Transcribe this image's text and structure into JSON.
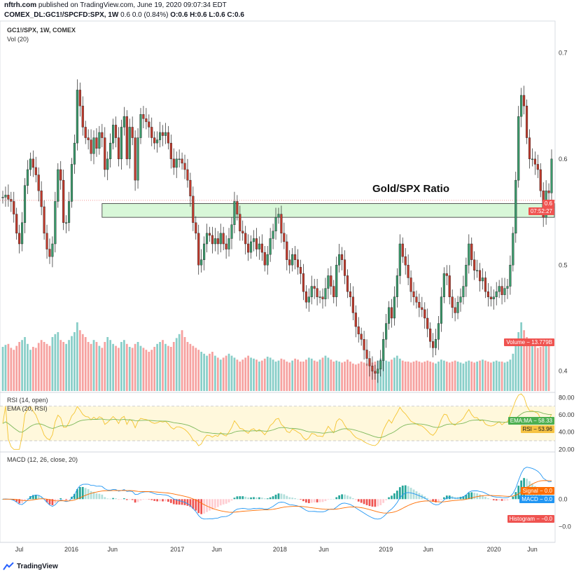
{
  "header": {
    "line1_site": "nftrh.com",
    "line1_rest": " published on TradingView.com, June 19, 2020 09:07:34 EDT",
    "line2_symbol": "COMEX_DL:GC1!/SPCFD:SPX, 1W",
    "line2_rest": " 0.6 0.0 (0.84%) ",
    "ohlc": "O:0.6 H:0.6 L:0.6 C:0.6"
  },
  "main_legend": {
    "symbol": "GC1!/SPX, 1W, COMEX",
    "vol": "Vol (20)"
  },
  "rsi_legend": {
    "rsi": "RSI (14, open)",
    "ema": "EMA (20, RSI)"
  },
  "macd_legend": "MACD (12, 26, close, 20)",
  "annotation": "Gold/SPX Ratio",
  "tags": {
    "price": "0.6",
    "countdown": "07:52:27",
    "volume": "Volume − 13.779B",
    "ema_ma": "EMA:MA − 58.33",
    "rsi": "RSI − 53.96",
    "signal": "Signal − 0.0",
    "macd": "MACD − 0.0",
    "histogram": "Histogram − −0.0"
  },
  "colors": {
    "up": "#26a69a",
    "down": "#ef5350",
    "candle_up": "#3a9a6b",
    "candle_down": "#c0392b",
    "rsi": "#f4c430",
    "ema": "#7cb85a",
    "macd": "#2196f3",
    "signal": "#ff6d00",
    "zone": "#d8f7d8",
    "ema_tag": "#4caf50",
    "rsi_tag": "#f6c343",
    "signal_tag": "#ff6d00",
    "macd_tag": "#2196f3",
    "hist_tag": "#ef5350",
    "volume_tag": "#ef5350"
  },
  "chart_data": {
    "type": "candlestick",
    "title": "GC1!/SPX, 1W, COMEX",
    "x_ticks": [
      "Jul",
      "2016",
      "Jun",
      "2017",
      "Jun",
      "2018",
      "Jun",
      "2019",
      "Jun",
      "2020",
      "Jun"
    ],
    "price_axis": {
      "ticks": [
        0.7,
        0.6,
        0.5,
        0.4
      ],
      "range": [
        0.38,
        0.73
      ]
    },
    "rsi_axis": {
      "ticks": [
        80.0,
        60.0,
        40.0,
        20.0
      ],
      "range": [
        17,
        86
      ],
      "bands": [
        70,
        30
      ]
    },
    "macd_axis": {
      "ticks": [
        0.0,
        -0.0
      ],
      "range": [
        -0.055,
        0.06
      ]
    },
    "close_series": [
      0.564,
      0.566,
      0.562,
      0.56,
      0.548,
      0.53,
      0.52,
      0.54,
      0.575,
      0.59,
      0.6,
      0.592,
      0.585,
      0.57,
      0.555,
      0.53,
      0.515,
      0.508,
      0.52,
      0.56,
      0.59,
      0.58,
      0.54,
      0.54,
      0.56,
      0.595,
      0.615,
      0.665,
      0.65,
      0.63,
      0.62,
      0.618,
      0.605,
      0.62,
      0.61,
      0.625,
      0.62,
      0.59,
      0.6,
      0.615,
      0.632,
      0.62,
      0.6,
      0.63,
      0.64,
      0.6,
      0.63,
      0.62,
      0.58,
      0.62,
      0.642,
      0.638,
      0.635,
      0.63,
      0.62,
      0.615,
      0.618,
      0.625,
      0.622,
      0.625,
      0.615,
      0.6,
      0.592,
      0.6,
      0.6,
      0.596,
      0.59,
      0.58,
      0.565,
      0.54,
      0.53,
      0.5,
      0.505,
      0.52,
      0.53,
      0.528,
      0.52,
      0.525,
      0.52,
      0.53,
      0.52,
      0.515,
      0.525,
      0.538,
      0.56,
      0.548,
      0.532,
      0.53,
      0.52,
      0.512,
      0.522,
      0.525,
      0.515,
      0.52,
      0.512,
      0.5,
      0.51,
      0.525,
      0.532,
      0.545,
      0.548,
      0.53,
      0.522,
      0.505,
      0.5,
      0.51,
      0.505,
      0.498,
      0.492,
      0.475,
      0.465,
      0.47,
      0.48,
      0.478,
      0.47,
      0.47,
      0.468,
      0.478,
      0.49,
      0.48,
      0.47,
      0.5,
      0.51,
      0.505,
      0.49,
      0.475,
      0.47,
      0.455,
      0.442,
      0.435,
      0.43,
      0.42,
      0.412,
      0.405,
      0.4,
      0.398,
      0.402,
      0.41,
      0.43,
      0.445,
      0.46,
      0.45,
      0.47,
      0.49,
      0.52,
      0.508,
      0.5,
      0.488,
      0.475,
      0.47,
      0.465,
      0.46,
      0.458,
      0.45,
      0.44,
      0.428,
      0.422,
      0.43,
      0.445,
      0.47,
      0.492,
      0.49,
      0.47,
      0.46,
      0.455,
      0.465,
      0.47,
      0.48,
      0.5,
      0.52,
      0.505,
      0.495,
      0.495,
      0.485,
      0.488,
      0.475,
      0.47,
      0.468,
      0.47,
      0.475,
      0.48,
      0.472,
      0.478,
      0.48,
      0.5,
      0.53,
      0.58,
      0.64,
      0.66,
      0.65,
      0.62,
      0.6,
      0.6,
      0.595,
      0.59,
      0.57,
      0.545,
      0.57,
      0.568,
      0.6
    ],
    "volume_series": [
      0.45,
      0.47,
      0.48,
      0.44,
      0.42,
      0.46,
      0.5,
      0.52,
      0.55,
      0.48,
      0.42,
      0.45,
      0.44,
      0.49,
      0.52,
      0.5,
      0.48,
      0.46,
      0.55,
      0.58,
      0.6,
      0.52,
      0.5,
      0.48,
      0.52,
      0.56,
      0.6,
      0.7,
      0.62,
      0.58,
      0.55,
      0.5,
      0.48,
      0.52,
      0.5,
      0.46,
      0.44,
      0.5,
      0.55,
      0.52,
      0.48,
      0.46,
      0.44,
      0.5,
      0.52,
      0.48,
      0.45,
      0.44,
      0.48,
      0.5,
      0.46,
      0.44,
      0.42,
      0.4,
      0.42,
      0.45,
      0.48,
      0.5,
      0.52,
      0.48,
      0.46,
      0.45,
      0.5,
      0.54,
      0.58,
      0.62,
      0.55,
      0.5,
      0.48,
      0.46,
      0.44,
      0.42,
      0.4,
      0.38,
      0.36,
      0.38,
      0.4,
      0.36,
      0.34,
      0.32,
      0.34,
      0.36,
      0.38,
      0.36,
      0.34,
      0.32,
      0.3,
      0.32,
      0.34,
      0.36,
      0.34,
      0.33,
      0.32,
      0.3,
      0.31,
      0.33,
      0.35,
      0.34,
      0.32,
      0.3,
      0.31,
      0.33,
      0.32,
      0.3,
      0.29,
      0.31,
      0.33,
      0.32,
      0.3,
      0.3,
      0.32,
      0.34,
      0.33,
      0.31,
      0.3,
      0.32,
      0.34,
      0.36,
      0.34,
      0.32,
      0.3,
      0.31,
      0.3,
      0.29,
      0.3,
      0.32,
      0.3,
      0.28,
      0.27,
      0.28,
      0.3,
      0.29,
      0.28,
      0.27,
      0.29,
      0.3,
      0.31,
      0.33,
      0.32,
      0.31,
      0.3,
      0.32,
      0.34,
      0.36,
      0.33,
      0.31,
      0.3,
      0.3,
      0.29,
      0.3,
      0.31,
      0.3,
      0.29,
      0.3,
      0.31,
      0.3,
      0.29,
      0.28,
      0.3,
      0.32,
      0.31,
      0.3,
      0.29,
      0.3,
      0.31,
      0.3,
      0.29,
      0.28,
      0.3,
      0.31,
      0.3,
      0.29,
      0.3,
      0.31,
      0.32,
      0.31,
      0.3,
      0.29,
      0.3,
      0.31,
      0.3,
      0.3,
      0.29,
      0.3,
      0.32,
      0.38,
      0.5,
      0.6,
      0.7,
      0.62,
      0.55,
      0.5,
      0.48,
      0.46,
      0.44,
      0.45,
      0.47,
      0.48,
      0.5
    ]
  }
}
